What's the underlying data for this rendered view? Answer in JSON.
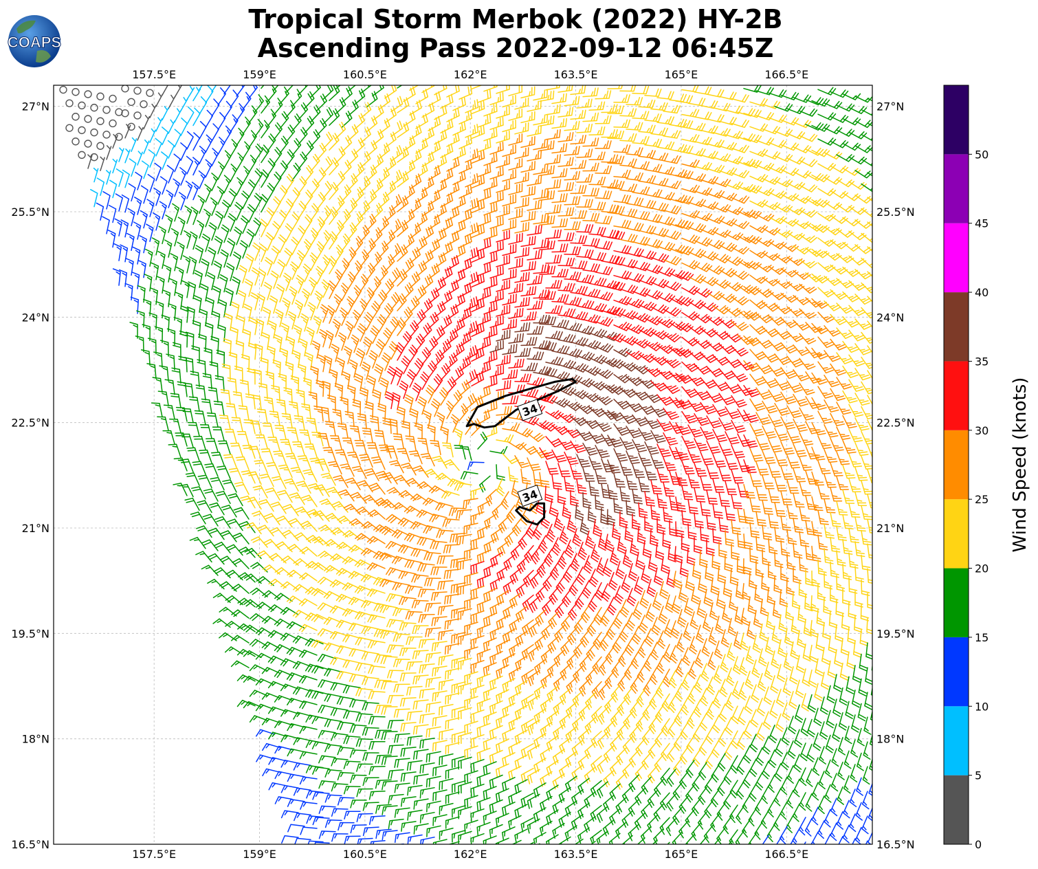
{
  "title_line1": "Tropical Storm Merbok (2022) HY-2B",
  "title_line2": "Ascending Pass 2022-09-12 06:45Z",
  "logo_text": "COAPS",
  "x_ticks": [
    {
      "value": 157.5,
      "label": "157.5°E"
    },
    {
      "value": 159.0,
      "label": "159°E"
    },
    {
      "value": 160.5,
      "label": "160.5°E"
    },
    {
      "value": 162.0,
      "label": "162°E"
    },
    {
      "value": 163.5,
      "label": "163.5°E"
    },
    {
      "value": 165.0,
      "label": "165°E"
    },
    {
      "value": 166.5,
      "label": "166.5°E"
    }
  ],
  "y_ticks": [
    {
      "value": 27.0,
      "label": "27°N"
    },
    {
      "value": 25.5,
      "label": "25.5°N"
    },
    {
      "value": 24.0,
      "label": "24°N"
    },
    {
      "value": 22.5,
      "label": "22.5°N"
    },
    {
      "value": 21.0,
      "label": "21°N"
    },
    {
      "value": 19.5,
      "label": "19.5°N"
    },
    {
      "value": 18.0,
      "label": "18°N"
    },
    {
      "value": 16.5,
      "label": "16.5°N"
    }
  ],
  "extent": {
    "lon_min": 156.07,
    "lon_max": 167.72,
    "lat_min": 16.5,
    "lat_max": 27.3
  },
  "colorbar": {
    "title": "Wind Speed (knots)",
    "tick_labels": [
      "0",
      "5",
      "10",
      "15",
      "20",
      "25",
      "30",
      "35",
      "40",
      "45",
      "50"
    ],
    "bins": [
      {
        "min": 0,
        "max": 5,
        "color": "#555555"
      },
      {
        "min": 5,
        "max": 10,
        "color": "#00bfff"
      },
      {
        "min": 10,
        "max": 15,
        "color": "#0038ff"
      },
      {
        "min": 15,
        "max": 20,
        "color": "#009600"
      },
      {
        "min": 20,
        "max": 25,
        "color": "#ffd414"
      },
      {
        "min": 25,
        "max": 30,
        "color": "#ff8c00"
      },
      {
        "min": 30,
        "max": 35,
        "color": "#ff1010"
      },
      {
        "min": 35,
        "max": 40,
        "color": "#7d3a28"
      },
      {
        "min": 40,
        "max": 45,
        "color": "#ff00ff"
      },
      {
        "min": 45,
        "max": 50,
        "color": "#8c00b4"
      },
      {
        "min": 50,
        "max": 55,
        "color": "#2d0064"
      }
    ]
  },
  "storm_center": {
    "lon": 162.2,
    "lat": 21.95
  },
  "swath_edge": {
    "west_top_lon": 156.1,
    "west_bottom_lon": 159.6
  },
  "contour": {
    "level_label": "34",
    "level_knots": 34,
    "north_lobe": [
      [
        161.95,
        22.45
      ],
      [
        162.1,
        22.72
      ],
      [
        162.5,
        22.88
      ],
      [
        162.85,
        22.98
      ],
      [
        163.2,
        23.08
      ],
      [
        163.45,
        23.12
      ],
      [
        163.5,
        23.08
      ],
      [
        163.25,
        22.95
      ],
      [
        162.95,
        22.82
      ],
      [
        162.65,
        22.68
      ],
      [
        162.35,
        22.45
      ],
      [
        162.2,
        22.43
      ],
      [
        162.05,
        22.48
      ]
    ],
    "south_lobe": [
      [
        162.65,
        21.25
      ],
      [
        162.8,
        21.1
      ],
      [
        162.95,
        21.05
      ],
      [
        163.05,
        21.15
      ],
      [
        163.05,
        21.35
      ],
      [
        162.95,
        21.35
      ],
      [
        162.85,
        21.25
      ],
      [
        162.7,
        21.3
      ]
    ]
  },
  "chart_data": {
    "type": "wind barbs (scatterometer swath)",
    "title": "Tropical Storm Merbok (2022) HY-2B Ascending Pass 2022-09-12 06:45Z",
    "colorbar_label": "Wind Speed (knots)",
    "xlim": [
      156.07,
      167.72
    ],
    "ylim": [
      16.5,
      27.3
    ],
    "colorbar_range": [
      0,
      55
    ],
    "contour_level": 34
  }
}
